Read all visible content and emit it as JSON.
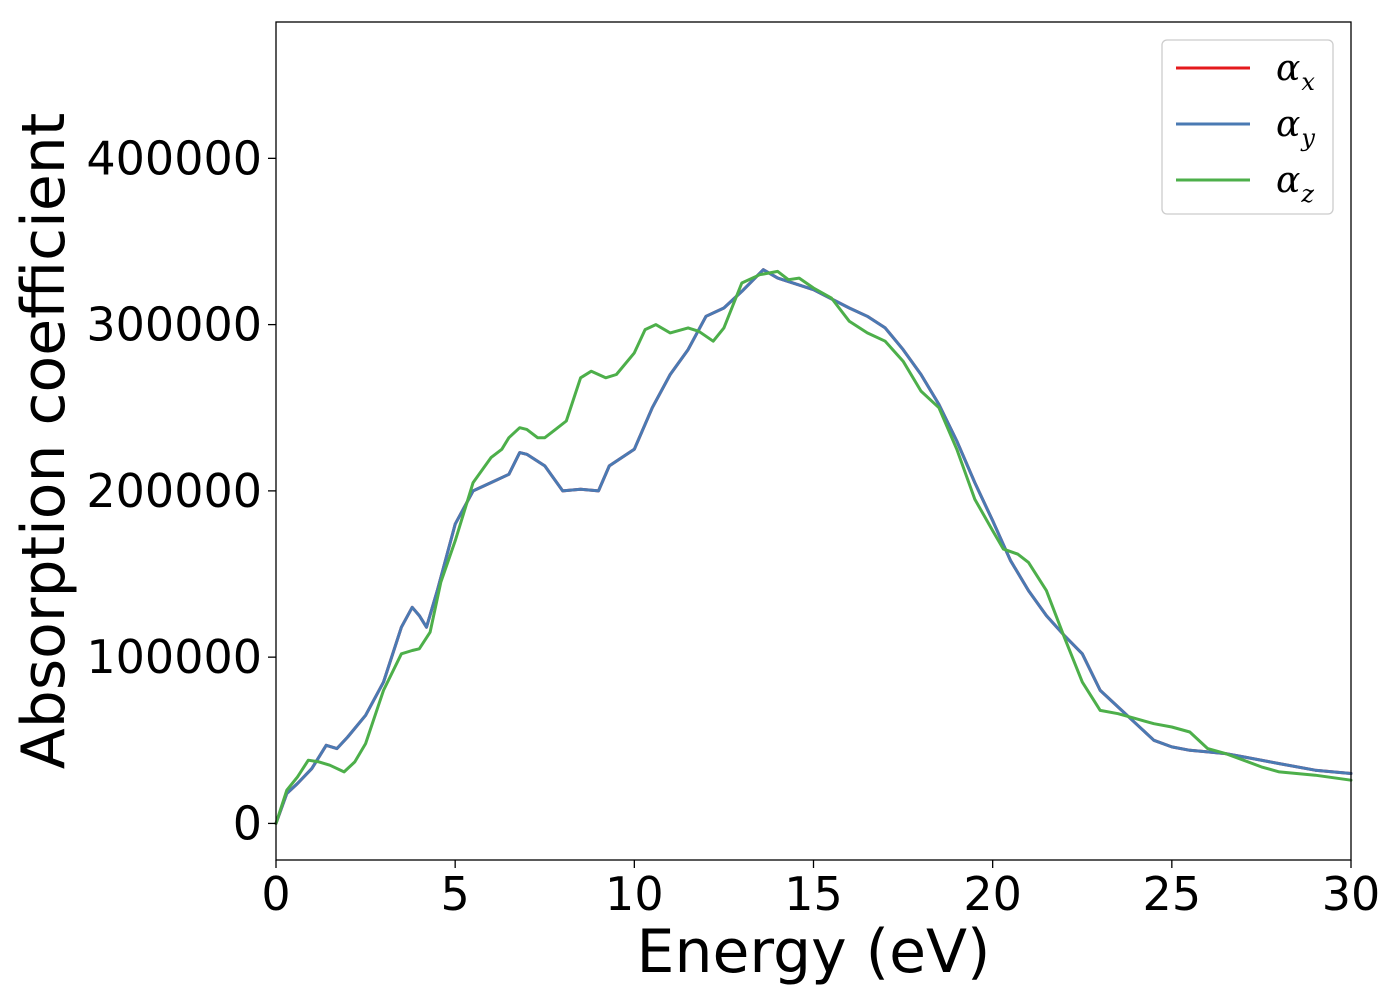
{
  "chart_data": {
    "type": "line",
    "xlabel": "Energy (eV)",
    "ylabel": "Absorption coefficient",
    "xlim": [
      0,
      30
    ],
    "ylim": [
      -22000,
      482000
    ],
    "xticks": [
      0,
      5,
      10,
      15,
      20,
      25,
      30
    ],
    "yticks": [
      0,
      100000,
      200000,
      300000,
      400000
    ],
    "grid": false,
    "legend_position": "top-right",
    "series": [
      {
        "name": "α",
        "subscript": "x",
        "color": "#e41a1c",
        "x": [
          0,
          0.3,
          0.6,
          1.0,
          1.4,
          1.7,
          2.0,
          2.5,
          3.0,
          3.5,
          3.8,
          4.0,
          4.2,
          4.5,
          5.0,
          5.5,
          6.0,
          6.5,
          6.8,
          7.0,
          7.5,
          8.0,
          8.5,
          9.0,
          9.3,
          10.0,
          10.5,
          11.0,
          11.5,
          12.0,
          12.5,
          13.0,
          13.6,
          14.0,
          15.0,
          16.0,
          16.5,
          17.0,
          17.5,
          18.0,
          18.5,
          19.0,
          19.5,
          20.0,
          20.5,
          21.0,
          21.5,
          22.0,
          22.5,
          23.0,
          23.5,
          24.0,
          24.5,
          25.0,
          25.5,
          26.0,
          26.5,
          27.0,
          28.0,
          29.0,
          30.0
        ],
        "values": [
          0,
          18000,
          24000,
          33000,
          47000,
          45000,
          52000,
          65000,
          85000,
          118000,
          130000,
          125000,
          118000,
          140000,
          180000,
          200000,
          205000,
          210000,
          223000,
          222000,
          215000,
          200000,
          201000,
          200000,
          215000,
          225000,
          250000,
          270000,
          285000,
          305000,
          310000,
          320000,
          333000,
          328000,
          321000,
          310000,
          305000,
          298000,
          285000,
          270000,
          252000,
          230000,
          205000,
          182000,
          158000,
          140000,
          125000,
          113000,
          102000,
          80000,
          70000,
          60000,
          50000,
          46000,
          44000,
          43000,
          42000,
          40000,
          36000,
          32000,
          30000
        ]
      },
      {
        "name": "α",
        "subscript": "y",
        "color": "#4a7ab3",
        "x": [
          0,
          0.3,
          0.6,
          1.0,
          1.4,
          1.7,
          2.0,
          2.5,
          3.0,
          3.5,
          3.8,
          4.0,
          4.2,
          4.5,
          5.0,
          5.5,
          6.0,
          6.5,
          6.8,
          7.0,
          7.5,
          8.0,
          8.5,
          9.0,
          9.3,
          10.0,
          10.5,
          11.0,
          11.5,
          12.0,
          12.5,
          13.0,
          13.6,
          14.0,
          15.0,
          16.0,
          16.5,
          17.0,
          17.5,
          18.0,
          18.5,
          19.0,
          19.5,
          20.0,
          20.5,
          21.0,
          21.5,
          22.0,
          22.5,
          23.0,
          23.5,
          24.0,
          24.5,
          25.0,
          25.5,
          26.0,
          26.5,
          27.0,
          28.0,
          29.0,
          30.0
        ],
        "values": [
          0,
          18000,
          24000,
          33000,
          47000,
          45000,
          52000,
          65000,
          85000,
          118000,
          130000,
          125000,
          118000,
          140000,
          180000,
          200000,
          205000,
          210000,
          223000,
          222000,
          215000,
          200000,
          201000,
          200000,
          215000,
          225000,
          250000,
          270000,
          285000,
          305000,
          310000,
          320000,
          333000,
          328000,
          321000,
          310000,
          305000,
          298000,
          285000,
          270000,
          252000,
          230000,
          205000,
          182000,
          158000,
          140000,
          125000,
          113000,
          102000,
          80000,
          70000,
          60000,
          50000,
          46000,
          44000,
          43000,
          42000,
          40000,
          36000,
          32000,
          30000
        ]
      },
      {
        "name": "α",
        "subscript": "z",
        "color": "#4daf4a",
        "x": [
          0,
          0.3,
          0.6,
          0.9,
          1.2,
          1.5,
          1.9,
          2.2,
          2.5,
          3.0,
          3.5,
          3.8,
          4.0,
          4.3,
          4.6,
          5.0,
          5.5,
          6.0,
          6.3,
          6.5,
          6.8,
          7.0,
          7.3,
          7.5,
          7.8,
          8.1,
          8.5,
          8.8,
          9.2,
          9.5,
          10.0,
          10.3,
          10.6,
          11.0,
          11.5,
          11.8,
          12.2,
          12.5,
          13.0,
          13.5,
          14.0,
          14.3,
          14.6,
          15.0,
          15.5,
          16.0,
          16.5,
          17.0,
          17.5,
          18.0,
          18.5,
          19.0,
          19.5,
          20.0,
          20.3,
          20.7,
          21.0,
          21.5,
          22.0,
          22.5,
          23.0,
          23.5,
          24.0,
          24.5,
          25.0,
          25.5,
          26.0,
          26.5,
          27.0,
          27.5,
          28.0,
          29.0,
          30.0
        ],
        "values": [
          0,
          20000,
          28000,
          38000,
          37000,
          35000,
          31000,
          37000,
          48000,
          80000,
          102000,
          104000,
          105000,
          115000,
          145000,
          170000,
          205000,
          220000,
          225000,
          232000,
          238000,
          237000,
          232000,
          232000,
          237000,
          242000,
          268000,
          272000,
          268000,
          270000,
          283000,
          297000,
          300000,
          295000,
          298000,
          296000,
          290000,
          298000,
          325000,
          330000,
          332000,
          327000,
          328000,
          322000,
          316000,
          302000,
          295000,
          290000,
          278000,
          260000,
          250000,
          225000,
          195000,
          176000,
          165000,
          162000,
          157000,
          140000,
          112000,
          85000,
          68000,
          66000,
          63000,
          60000,
          58000,
          55000,
          45000,
          42000,
          38000,
          34000,
          31000,
          29000,
          26000
        ]
      }
    ]
  }
}
